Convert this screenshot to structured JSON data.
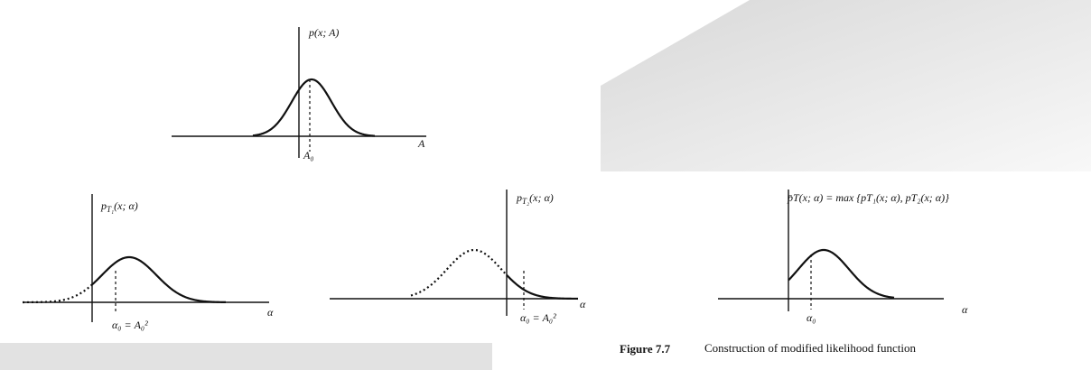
{
  "top": {
    "ylabel": "p(x; A)",
    "xlabel": "A",
    "marker": "A₀"
  },
  "left": {
    "ylabel": {
      "base": "p",
      "sub": "T₁",
      "rest": "(x; α)"
    },
    "xlabel": "α",
    "marker": "α₀ = A₀²"
  },
  "middle": {
    "ylabel": {
      "base": "p",
      "sub": "T₂",
      "rest": "(x; α)"
    },
    "xlabel": "α",
    "marker": "α₀ = A₀²"
  },
  "right": {
    "ylabel": "p̄T(x; α) = max {pT₁(x; α), pT₂(x; α)}",
    "xlabel": "α",
    "marker": "α₀"
  },
  "caption": {
    "number": "Figure 7.7",
    "text": "Construction of modified likelihood function"
  }
}
